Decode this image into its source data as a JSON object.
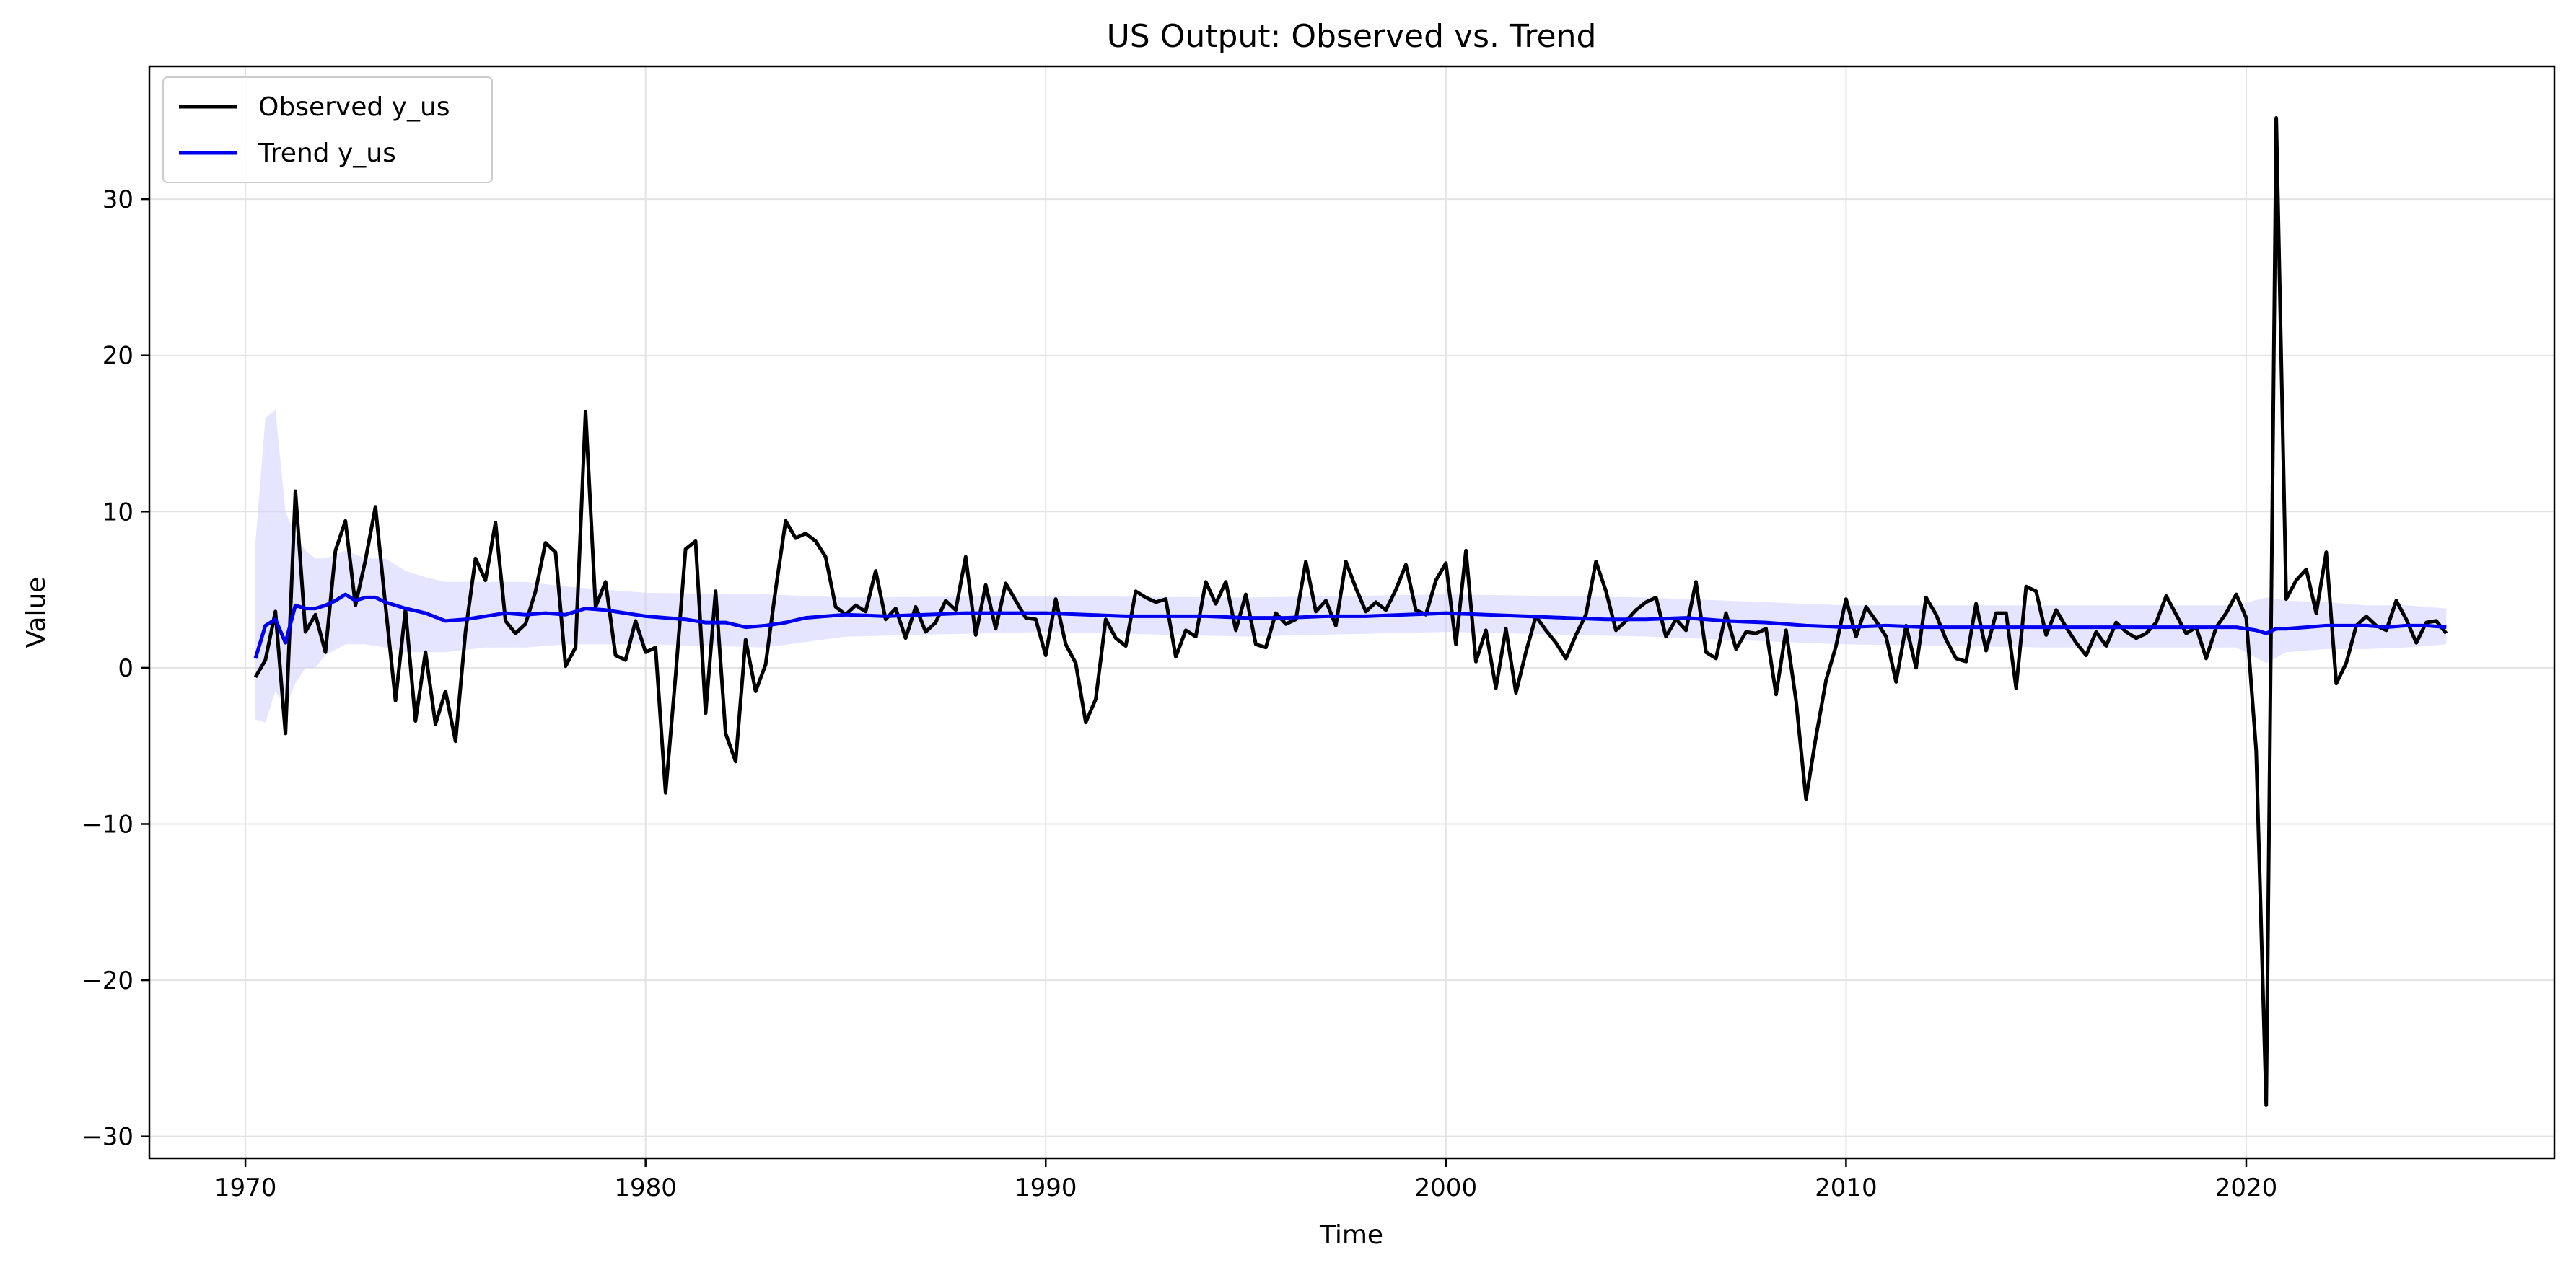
{
  "chart_data": {
    "type": "line",
    "title": "US Output: Observed vs. Trend",
    "xlabel": "Time",
    "ylabel": "Value",
    "xlim": [
      1967.6,
      2027.7
    ],
    "ylim": [
      -31.4,
      38.5
    ],
    "xticks": [
      1970,
      1980,
      1990,
      2000,
      2010,
      2020
    ],
    "yticks": [
      -30,
      -20,
      -10,
      0,
      10,
      20,
      30
    ],
    "ytick_labels": [
      "−30",
      "−20",
      "−10",
      "0",
      "10",
      "20",
      "30"
    ],
    "grid": true,
    "legend_position": "top-left",
    "colors": {
      "observed": "#000000",
      "trend": "#0000ee",
      "band": "#ccccff"
    },
    "series": [
      {
        "name": "Observed y_us",
        "x": [
          1970.25,
          1970.5,
          1970.75,
          1971.0,
          1971.25,
          1971.5,
          1971.75,
          1972.0,
          1972.25,
          1972.5,
          1972.75,
          1973.0,
          1973.25,
          1973.5,
          1973.75,
          1974.0,
          1974.25,
          1974.5,
          1974.75,
          1975.0,
          1975.25,
          1975.5,
          1975.75,
          1976.0,
          1976.25,
          1976.5,
          1976.75,
          1977.0,
          1977.25,
          1977.5,
          1977.75,
          1978.0,
          1978.25,
          1978.5,
          1978.75,
          1979.0,
          1979.25,
          1979.5,
          1979.75,
          1980.0,
          1980.25,
          1980.5,
          1980.75,
          1981.0,
          1981.25,
          1981.5,
          1981.75,
          1982.0,
          1982.25,
          1982.5,
          1982.75,
          1983.0,
          1983.25,
          1983.5,
          1983.75,
          1984.0,
          1984.25,
          1984.5,
          1984.75,
          1985.0,
          1985.25,
          1985.5,
          1985.75,
          1986.0,
          1986.25,
          1986.5,
          1986.75,
          1987.0,
          1987.25,
          1987.5,
          1987.75,
          1988.0,
          1988.25,
          1988.5,
          1988.75,
          1989.0,
          1989.25,
          1989.5,
          1989.75,
          1990.0,
          1990.25,
          1990.5,
          1990.75,
          1991.0,
          1991.25,
          1991.5,
          1991.75,
          1992.0,
          1992.25,
          1992.5,
          1992.75,
          1993.0,
          1993.25,
          1993.5,
          1993.75,
          1994.0,
          1994.25,
          1994.5,
          1994.75,
          1995.0,
          1995.25,
          1995.5,
          1995.75,
          1996.0,
          1996.25,
          1996.5,
          1996.75,
          1997.0,
          1997.25,
          1997.5,
          1997.75,
          1998.0,
          1998.25,
          1998.5,
          1998.75,
          1999.0,
          1999.25,
          1999.5,
          1999.75,
          2000.0,
          2000.25,
          2000.5,
          2000.75,
          2001.0,
          2001.25,
          2001.5,
          2001.75,
          2002.0,
          2002.25,
          2002.5,
          2002.75,
          2003.0,
          2003.25,
          2003.5,
          2003.75,
          2004.0,
          2004.25,
          2004.5,
          2004.75,
          2005.0,
          2005.25,
          2005.5,
          2005.75,
          2006.0,
          2006.25,
          2006.5,
          2006.75,
          2007.0,
          2007.25,
          2007.5,
          2007.75,
          2008.0,
          2008.25,
          2008.5,
          2008.75,
          2009.0,
          2009.25,
          2009.5,
          2009.75,
          2010.0,
          2010.25,
          2010.5,
          2010.75,
          2011.0,
          2011.25,
          2011.5,
          2011.75,
          2012.0,
          2012.25,
          2012.5,
          2012.75,
          2013.0,
          2013.25,
          2013.5,
          2013.75,
          2014.0,
          2014.25,
          2014.5,
          2014.75,
          2015.0,
          2015.25,
          2015.5,
          2015.75,
          2016.0,
          2016.25,
          2016.5,
          2016.75,
          2017.0,
          2017.25,
          2017.5,
          2017.75,
          2018.0,
          2018.25,
          2018.5,
          2018.75,
          2019.0,
          2019.25,
          2019.5,
          2019.75,
          2020.0,
          2020.25,
          2020.5,
          2020.75,
          2021.0,
          2021.25,
          2021.5,
          2021.75,
          2022.0,
          2022.25,
          2022.5,
          2022.75,
          2023.0,
          2023.25,
          2023.5,
          2023.75,
          2024.0,
          2024.25,
          2024.5,
          2024.75,
          2025.0
        ],
        "y": [
          -0.6,
          0.5,
          3.6,
          -4.2,
          11.3,
          2.3,
          3.4,
          1.0,
          7.5,
          9.4,
          4.0,
          6.9,
          10.3,
          4.0,
          -2.1,
          3.7,
          -3.4,
          1.0,
          -3.6,
          -1.5,
          -4.7,
          2.3,
          7.0,
          5.6,
          9.3,
          3.0,
          2.2,
          2.8,
          4.9,
          8.0,
          7.4,
          0.1,
          1.3,
          16.4,
          3.9,
          5.5,
          0.8,
          0.5,
          3.0,
          1.0,
          1.3,
          -8.0,
          -0.5,
          7.6,
          8.1,
          -2.9,
          4.9,
          -4.2,
          -6.0,
          1.8,
          -1.5,
          0.2,
          5.0,
          9.4,
          8.3,
          8.6,
          8.1,
          7.1,
          3.9,
          3.4,
          4.0,
          3.6,
          6.2,
          3.1,
          3.8,
          1.9,
          3.9,
          2.3,
          2.9,
          4.3,
          3.7,
          7.1,
          2.1,
          5.3,
          2.5,
          5.4,
          4.3,
          3.2,
          3.1,
          0.8,
          4.4,
          1.5,
          0.3,
          -3.5,
          -2.0,
          3.1,
          1.9,
          1.4,
          4.9,
          4.5,
          4.2,
          4.4,
          0.7,
          2.4,
          2.0,
          5.5,
          4.1,
          5.5,
          2.4,
          4.7,
          1.5,
          1.3,
          3.5,
          2.8,
          3.1,
          6.8,
          3.6,
          4.3,
          2.7,
          6.8,
          5.1,
          3.6,
          4.2,
          3.7,
          5.0,
          6.6,
          3.7,
          3.4,
          5.6,
          6.7,
          1.5,
          7.5,
          0.4,
          2.4,
          -1.3,
          2.5,
          -1.6,
          1.0,
          3.3,
          2.4,
          1.6,
          0.6,
          2.1,
          3.4,
          6.8,
          4.9,
          2.4,
          3.0,
          3.7,
          4.2,
          4.5,
          2.0,
          3.1,
          2.4,
          5.5,
          1.0,
          0.6,
          3.5,
          1.2,
          2.3,
          2.2,
          2.5,
          -1.7,
          2.4,
          -2.1,
          -8.4,
          -4.4,
          -0.8,
          1.4,
          4.4,
          2.0,
          3.9,
          3.0,
          2.0,
          -0.9,
          2.7,
          0.0,
          4.5,
          3.4,
          1.8,
          0.6,
          0.4,
          4.1,
          1.1,
          3.5,
          3.5,
          -1.3,
          5.2,
          4.9,
          2.1,
          3.7,
          2.6,
          1.6,
          0.8,
          2.3,
          1.4,
          2.9,
          2.3,
          1.9,
          2.2,
          2.9,
          4.6,
          3.4,
          2.2,
          2.6,
          0.6,
          2.6,
          3.5,
          4.7,
          3.2,
          -5.3,
          -28.0,
          35.2,
          4.4,
          5.6,
          6.3,
          3.5,
          7.4,
          -1.0,
          0.3,
          2.7,
          3.3,
          2.7,
          2.4,
          4.3,
          3.1,
          1.6,
          2.9,
          3.0,
          2.2
        ]
      },
      {
        "name": "Trend y_us",
        "x": [
          1970.25,
          1970.5,
          1970.75,
          1971.0,
          1971.25,
          1971.5,
          1971.75,
          1972.0,
          1972.25,
          1972.5,
          1972.75,
          1973.0,
          1973.25,
          1973.5,
          1974.0,
          1974.5,
          1975.0,
          1975.5,
          1976.0,
          1976.5,
          1977.0,
          1977.5,
          1978.0,
          1978.5,
          1979.0,
          1979.5,
          1980.0,
          1980.5,
          1981.0,
          1981.5,
          1982.0,
          1982.5,
          1983.0,
          1983.5,
          1984.0,
          1984.5,
          1985.0,
          1986.0,
          1987.0,
          1988.0,
          1989.0,
          1990.0,
          1991.0,
          1992.0,
          1993.0,
          1994.0,
          1995.0,
          1996.0,
          1997.0,
          1998.0,
          1999.0,
          2000.0,
          2001.0,
          2002.0,
          2003.0,
          2004.0,
          2005.0,
          2006.0,
          2007.0,
          2008.0,
          2009.0,
          2010.0,
          2011.0,
          2012.0,
          2013.0,
          2014.0,
          2015.0,
          2016.0,
          2017.0,
          2018.0,
          2019.0,
          2019.75,
          2020.25,
          2020.5,
          2020.75,
          2021.0,
          2021.5,
          2022.0,
          2022.5,
          2023.0,
          2023.5,
          2024.0,
          2024.5,
          2025.0
        ],
        "y": [
          0.6,
          2.7,
          3.1,
          1.6,
          4.0,
          3.8,
          3.8,
          4.0,
          4.3,
          4.7,
          4.3,
          4.5,
          4.5,
          4.2,
          3.8,
          3.5,
          3.0,
          3.1,
          3.3,
          3.5,
          3.4,
          3.5,
          3.4,
          3.8,
          3.7,
          3.5,
          3.3,
          3.2,
          3.1,
          2.9,
          2.9,
          2.6,
          2.7,
          2.9,
          3.2,
          3.3,
          3.4,
          3.3,
          3.4,
          3.5,
          3.5,
          3.5,
          3.4,
          3.3,
          3.3,
          3.3,
          3.2,
          3.2,
          3.3,
          3.3,
          3.4,
          3.5,
          3.4,
          3.3,
          3.2,
          3.1,
          3.1,
          3.2,
          3.0,
          2.9,
          2.7,
          2.6,
          2.7,
          2.6,
          2.6,
          2.6,
          2.6,
          2.6,
          2.6,
          2.6,
          2.6,
          2.6,
          2.4,
          2.2,
          2.5,
          2.5,
          2.6,
          2.7,
          2.7,
          2.7,
          2.6,
          2.7,
          2.7,
          2.6
        ]
      }
    ],
    "band": {
      "x": [
        1970.25,
        1970.5,
        1970.75,
        1971.0,
        1971.25,
        1971.5,
        1971.75,
        1972.0,
        1972.5,
        1973.0,
        1973.5,
        1974.0,
        1974.5,
        1975.0,
        1976.0,
        1977.0,
        1978.0,
        1980.0,
        1983.0,
        1985.0,
        1990.0,
        1995.0,
        2000.0,
        2005.0,
        2010.0,
        2015.0,
        2019.75,
        2020.5,
        2021.0,
        2022.0,
        2023.0,
        2024.0,
        2025.0
      ],
      "upper": [
        8.0,
        16.0,
        16.5,
        10.0,
        8.5,
        7.5,
        7.0,
        7.0,
        7.5,
        7.0,
        7.0,
        6.2,
        5.8,
        5.5,
        5.5,
        5.5,
        5.2,
        4.8,
        4.7,
        4.5,
        4.6,
        4.5,
        4.7,
        4.5,
        4.0,
        4.0,
        4.0,
        4.5,
        4.3,
        4.2,
        4.0,
        4.0,
        3.8
      ],
      "lower": [
        -3.3,
        -3.5,
        -1.5,
        -2.5,
        -1.0,
        0.0,
        0.0,
        0.8,
        1.5,
        1.5,
        1.3,
        1.0,
        1.0,
        1.0,
        1.3,
        1.3,
        1.5,
        1.5,
        1.3,
        2.0,
        2.3,
        2.0,
        2.3,
        2.0,
        1.5,
        1.3,
        1.3,
        0.3,
        1.0,
        1.2,
        1.2,
        1.3,
        1.5
      ]
    }
  }
}
